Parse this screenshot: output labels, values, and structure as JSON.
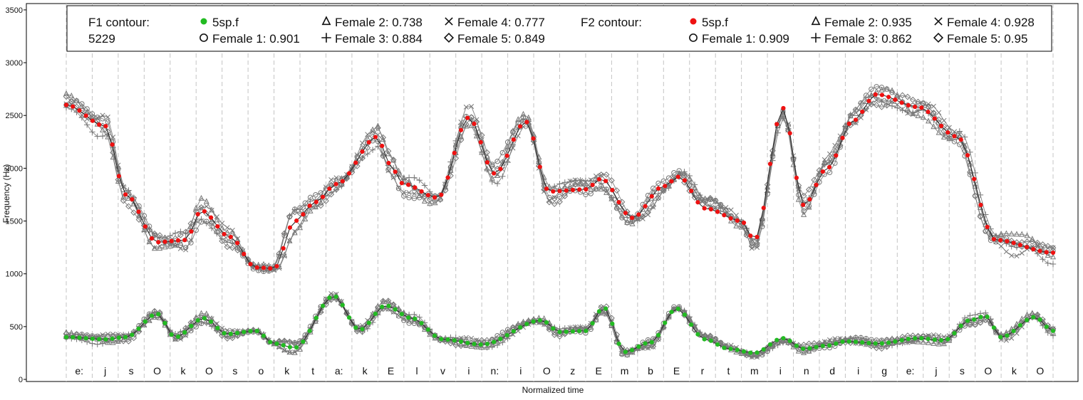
{
  "chart_data": {
    "type": "line",
    "xlabel": "Normalized time",
    "ylabel": "Frequency (Hz)",
    "ylim": [
      -20,
      3560
    ],
    "y_ticks": [
      0,
      500,
      1000,
      1500,
      2000,
      2500,
      3000,
      3500
    ],
    "grid": "vertical dashed segment boundaries",
    "segments": [
      "e:",
      "j",
      "s",
      "O",
      "k",
      "O",
      "s",
      "o",
      "k",
      "t",
      "a:",
      "k",
      "E",
      "l",
      "v",
      "i",
      "n:",
      "i",
      "O",
      "z",
      "E",
      "m",
      "b",
      "E",
      "r",
      "t",
      "m",
      "i",
      "n",
      "d",
      "i",
      "g",
      "e:",
      "j",
      "s",
      "O",
      "k",
      "O"
    ],
    "legend": {
      "f1_title": "F1 contour:",
      "f1_subtitle": "5229",
      "f2_title": "F2 contour:",
      "f1_entries": [
        {
          "label": "5sp.f",
          "marker": "dot-green"
        },
        {
          "label": "Female 1: 0.901",
          "marker": "circle"
        },
        {
          "label": "Female 2: 0.738",
          "marker": "triangle"
        },
        {
          "label": "Female 3: 0.884",
          "marker": "plus"
        },
        {
          "label": "Female 4: 0.777",
          "marker": "cross"
        },
        {
          "label": "Female 5: 0.849",
          "marker": "diamond"
        }
      ],
      "f2_entries": [
        {
          "label": "5sp.f",
          "marker": "dot-red"
        },
        {
          "label": "Female 1: 0.909",
          "marker": "circle"
        },
        {
          "label": "Female 2: 0.935",
          "marker": "triangle"
        },
        {
          "label": "Female 3: 0.862",
          "marker": "plus"
        },
        {
          "label": "Female 4: 0.928",
          "marker": "cross"
        },
        {
          "label": "Female 5: 0.95",
          "marker": "diamond"
        }
      ]
    },
    "colors": {
      "f1_main": "#22bb22",
      "f2_main": "#ee1111",
      "females": "#777777"
    },
    "series": [
      {
        "name": "5sp.f",
        "formant": "F2",
        "keyframes": [
          [
            0,
            2600
          ],
          [
            1.5,
            2400
          ],
          [
            2.3,
            1750
          ],
          [
            3.5,
            1300
          ],
          [
            4.6,
            1320
          ],
          [
            5.2,
            1600
          ],
          [
            6.3,
            1350
          ],
          [
            7.3,
            1060
          ],
          [
            8.0,
            1050
          ],
          [
            8.8,
            1500
          ],
          [
            9.6,
            1680
          ],
          [
            10.4,
            1850
          ],
          [
            12,
            2300
          ],
          [
            12.4,
            2050
          ],
          [
            13,
            1850
          ],
          [
            14.3,
            1720
          ],
          [
            15.5,
            2480
          ],
          [
            16.5,
            1950
          ],
          [
            17.7,
            2440
          ],
          [
            18.6,
            1780
          ],
          [
            20,
            1800
          ],
          [
            20.6,
            1900
          ],
          [
            21.8,
            1530
          ],
          [
            23,
            1830
          ],
          [
            23.6,
            1920
          ],
          [
            24.6,
            1620
          ],
          [
            26,
            1500
          ],
          [
            26.5,
            1320
          ],
          [
            27.6,
            2570
          ],
          [
            28.4,
            1650
          ],
          [
            29.3,
            2000
          ],
          [
            30.3,
            2450
          ],
          [
            31.2,
            2700
          ],
          [
            32.8,
            2580
          ],
          [
            34.3,
            2300
          ],
          [
            35.8,
            1320
          ],
          [
            38,
            1200
          ]
        ]
      },
      {
        "name": "5sp.f",
        "formant": "F1",
        "keyframes": [
          [
            0,
            400
          ],
          [
            1.5,
            380
          ],
          [
            2.3,
            400
          ],
          [
            3.5,
            620
          ],
          [
            4.2,
            400
          ],
          [
            5.3,
            580
          ],
          [
            6.2,
            430
          ],
          [
            7.3,
            460
          ],
          [
            8.0,
            340
          ],
          [
            8.8,
            300
          ],
          [
            10.3,
            790
          ],
          [
            11.3,
            470
          ],
          [
            12.3,
            700
          ],
          [
            13.3,
            580
          ],
          [
            14.5,
            380
          ],
          [
            16.0,
            330
          ],
          [
            18.3,
            560
          ],
          [
            19.0,
            450
          ],
          [
            20.0,
            460
          ],
          [
            20.7,
            680
          ],
          [
            21.5,
            260
          ],
          [
            22.5,
            350
          ],
          [
            23.5,
            670
          ],
          [
            24.6,
            380
          ],
          [
            25.5,
            290
          ],
          [
            26.5,
            250
          ],
          [
            27.6,
            390
          ],
          [
            28.4,
            290
          ],
          [
            29.3,
            320
          ],
          [
            30.0,
            360
          ],
          [
            31.3,
            340
          ],
          [
            32.8,
            390
          ],
          [
            33.8,
            370
          ],
          [
            34.8,
            560
          ],
          [
            35.4,
            600
          ],
          [
            36.0,
            400
          ],
          [
            37.3,
            590
          ],
          [
            38,
            460
          ]
        ]
      }
    ]
  }
}
